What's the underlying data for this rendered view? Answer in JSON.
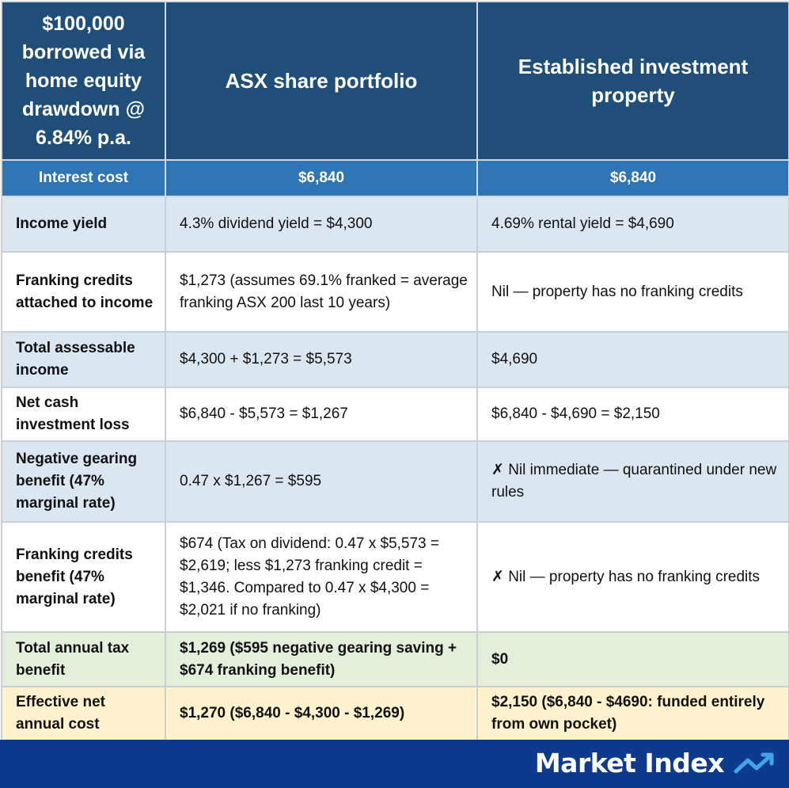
{
  "table": {
    "header": {
      "corner": "$100,000 borrowed via home equity drawdown @ 6.84% p.a.",
      "col1": "ASX share portfolio",
      "col2": "Established investment property"
    },
    "interest_row": {
      "label": "Interest cost",
      "col1": "$6,840",
      "col2": "$6,840"
    },
    "rows": [
      {
        "label": "Income yield",
        "col1": "4.3% dividend yield = $4,300",
        "col2": "4.69% rental yield = $4,690"
      },
      {
        "label": "Franking credits attached to income",
        "col1": "$1,273 (assumes 69.1% franked = average franking ASX 200 last 10 years)",
        "col2": "Nil — property has no franking credits"
      },
      {
        "label": "Total assessable income",
        "col1": "$4,300 + $1,273 = $5,573",
        "col2": "$4,690"
      },
      {
        "label": "Net cash investment loss",
        "col1": "$6,840 - $5,573 = $1,267",
        "col2": "$6,840 - $4,690 = $2,150"
      },
      {
        "label": "Negative gearing benefit (47% marginal rate)",
        "col1": "0.47 x $1,267 = $595",
        "col2": "✗ Nil immediate — quarantined under new rules"
      },
      {
        "label": "Franking credits benefit (47% marginal rate)",
        "col1": "$674 (Tax on dividend: 0.47 x $5,573 = $2,619; less $1,273 franking credit = $1,346. Compared to 0.47 x $4,300 = $2,021 if no franking)",
        "col2": "✗ Nil — property has no franking credits"
      },
      {
        "label": "Total annual tax benefit",
        "col1": "$1,269 ($595 negative gearing saving + $674 franking benefit)",
        "col2": "$0"
      },
      {
        "label": "Effective net annual cost",
        "col1": "$1,270 ($6,840 - $4,300 - $1,269)",
        "col2": "$2,150 ($6,840 - $4690: funded entirely from own pocket)"
      }
    ]
  },
  "footer": {
    "logo_text": "Market Index",
    "logo_icon": "trend-arrow-icon"
  },
  "colors": {
    "header_bg": "#1f4e79",
    "subheader_bg": "#2e75b6",
    "row_blue": "#dae6f0",
    "row_green": "#e2efda",
    "row_yellow": "#fff2cc",
    "footer_bg": "#0d3a8c",
    "logo_accent": "#3fa7e8"
  }
}
